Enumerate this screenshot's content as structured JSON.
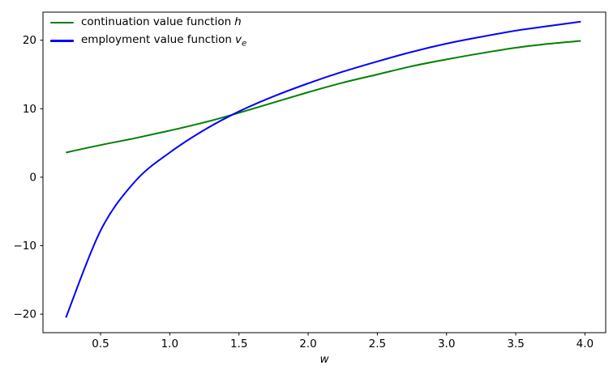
{
  "chart_data": {
    "type": "line",
    "title": "",
    "xlabel": "w",
    "ylabel": "",
    "xlim": [
      0.084,
      4.15
    ],
    "ylim": [
      -22.7,
      24.1
    ],
    "grid": false,
    "xticks": {
      "values": [
        0.5,
        1.0,
        1.5,
        2.0,
        2.5,
        3.0,
        3.5,
        4.0
      ],
      "labels": [
        "0.5",
        "1.0",
        "1.5",
        "2.0",
        "2.5",
        "3.0",
        "3.5",
        "4.0"
      ]
    },
    "yticks": {
      "values": [
        -20,
        -10,
        0,
        10,
        20
      ],
      "labels": [
        "−20",
        "−10",
        "0",
        "10",
        "20"
      ]
    },
    "legend": {
      "position": "upper left",
      "frame": false
    },
    "x": [
      0.25,
      0.5,
      0.75,
      1.0,
      1.25,
      1.5,
      1.75,
      2.0,
      2.25,
      2.5,
      2.75,
      3.0,
      3.25,
      3.5,
      3.75,
      3.97
    ],
    "series": [
      {
        "name": "continuation value function h",
        "label_text": "continuation value function",
        "label_var": "h",
        "label_var_sub": "",
        "color": "#008000",
        "line_width": 2,
        "values": [
          3.6,
          4.7,
          5.7,
          6.8,
          8.0,
          9.4,
          10.9,
          12.4,
          13.8,
          15.0,
          16.2,
          17.2,
          18.1,
          18.9,
          19.5,
          19.9
        ]
      },
      {
        "name": "employment value function v_e",
        "label_text": "employment value function",
        "label_var": "v",
        "label_var_sub": "e",
        "color": "#0000ff",
        "line_width": 2,
        "values": [
          -20.5,
          -7.8,
          -0.6,
          3.6,
          6.9,
          9.6,
          11.8,
          13.7,
          15.4,
          16.9,
          18.3,
          19.5,
          20.5,
          21.4,
          22.1,
          22.7
        ]
      }
    ],
    "crossing_point": {
      "w": 1.45,
      "value": 9.2
    }
  },
  "colors": {
    "background": "#ffffff",
    "spine": "#000000",
    "tick": "#000000",
    "tick_label": "#000000"
  }
}
